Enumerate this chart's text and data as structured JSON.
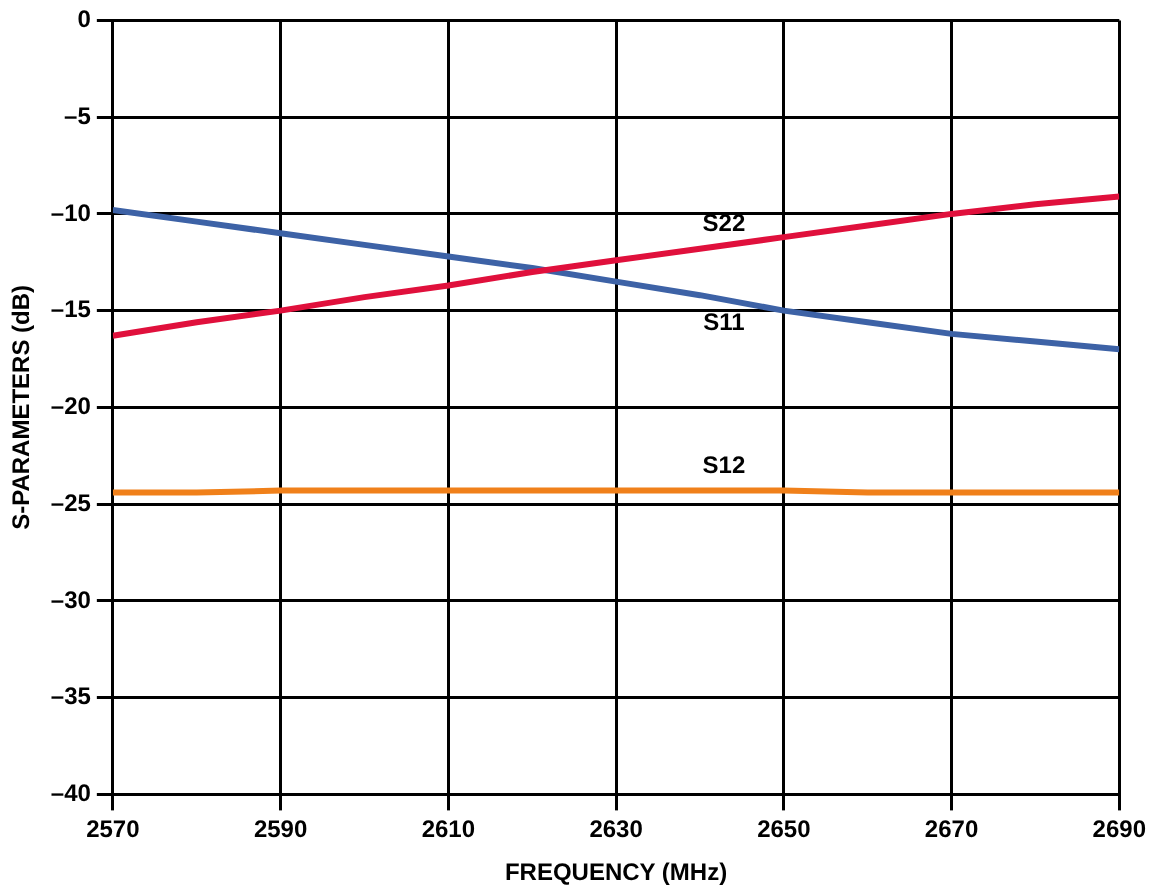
{
  "chart_data": {
    "type": "line",
    "xlabel": "FREQUENCY (MHz)",
    "ylabel": "S-PARAMETERS (dB)",
    "x": [
      2570,
      2580,
      2590,
      2600,
      2610,
      2620,
      2630,
      2640,
      2650,
      2660,
      2670,
      2680,
      2690
    ],
    "series": [
      {
        "name": "S22",
        "color": "#e0103c",
        "values": [
          -16.3,
          -15.6,
          -15.0,
          -14.3,
          -13.7,
          -13.0,
          -12.4,
          -11.8,
          -11.2,
          -10.6,
          -10.0,
          -9.5,
          -9.1
        ]
      },
      {
        "name": "S11",
        "color": "#3d62a6",
        "values": [
          -9.8,
          -10.4,
          -11.0,
          -11.6,
          -12.2,
          -12.8,
          -13.5,
          -14.2,
          -15.0,
          -15.6,
          -16.2,
          -16.6,
          -17.0
        ]
      },
      {
        "name": "S12",
        "color": "#f0801a",
        "values": [
          -24.4,
          -24.4,
          -24.3,
          -24.3,
          -24.3,
          -24.3,
          -24.3,
          -24.3,
          -24.3,
          -24.4,
          -24.4,
          -24.4,
          -24.4
        ]
      }
    ],
    "xlim": [
      2570,
      2690
    ],
    "xticks": [
      2570,
      2590,
      2610,
      2630,
      2650,
      2670,
      2690
    ],
    "ylim": [
      -40,
      0
    ],
    "yticks": [
      {
        "value": -40,
        "label": "–40"
      },
      {
        "value": -35,
        "label": "–35"
      },
      {
        "value": -30,
        "label": "–30"
      },
      {
        "value": -25,
        "label": "–25"
      },
      {
        "value": -20,
        "label": "–20"
      },
      {
        "value": -15,
        "label": "–15"
      },
      {
        "value": -10,
        "label": "–10"
      },
      {
        "value": -5,
        "label": "–5"
      },
      0
    ],
    "grid": true,
    "legend": false,
    "marker": "none",
    "line_style": "solid"
  }
}
